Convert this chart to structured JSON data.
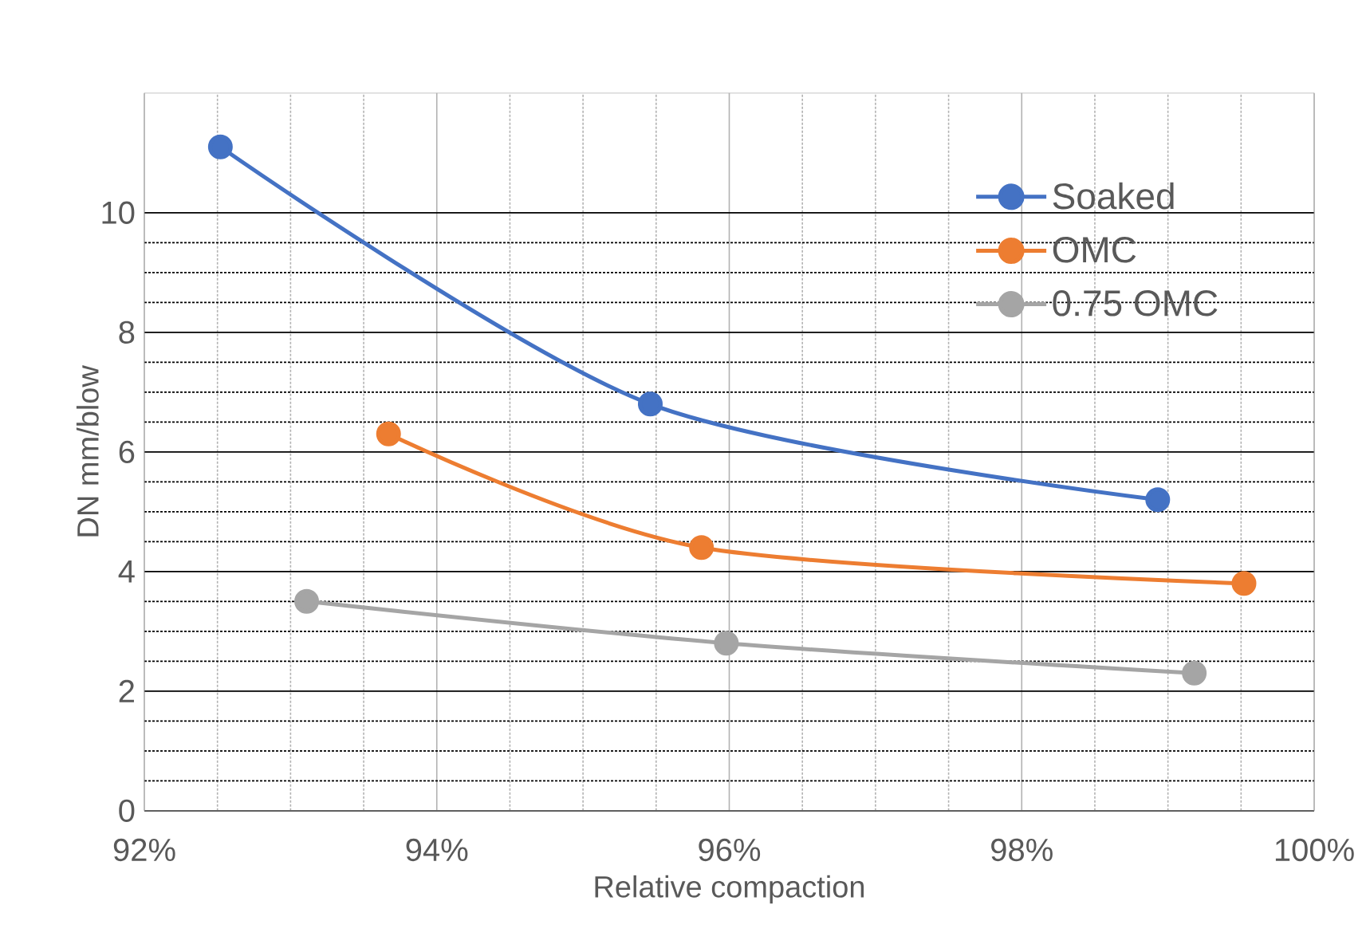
{
  "chart_data": {
    "type": "line",
    "xlabel": "Relative compaction",
    "ylabel": "DN mm/blow",
    "xlim": [
      92,
      100
    ],
    "xticks": [
      {
        "value": 92,
        "label": "92%"
      },
      {
        "value": 94,
        "label": "94%"
      },
      {
        "value": 96,
        "label": "96%"
      },
      {
        "value": 98,
        "label": "98%"
      },
      {
        "value": 100,
        "label": "100%"
      }
    ],
    "ylim": [
      0,
      12
    ],
    "yticks": [
      0,
      2,
      4,
      6,
      8,
      10
    ],
    "grid": true,
    "legend": "top right",
    "marker": "circle",
    "line_style": "solid",
    "series": [
      {
        "name": "Soaked",
        "color": "#4472c4",
        "x": [
          92.52,
          95.46,
          98.93
        ],
        "values": [
          11.1,
          6.8,
          5.2
        ]
      },
      {
        "name": "OMC",
        "color": "#ed7d31",
        "x": [
          93.67,
          95.81,
          99.52
        ],
        "values": [
          6.3,
          4.4,
          3.8
        ]
      },
      {
        "name": "0.75 OMC",
        "color": "#a5a5a5",
        "x": [
          93.11,
          95.98,
          99.18
        ],
        "values": [
          3.5,
          2.8,
          2.3
        ]
      }
    ]
  }
}
